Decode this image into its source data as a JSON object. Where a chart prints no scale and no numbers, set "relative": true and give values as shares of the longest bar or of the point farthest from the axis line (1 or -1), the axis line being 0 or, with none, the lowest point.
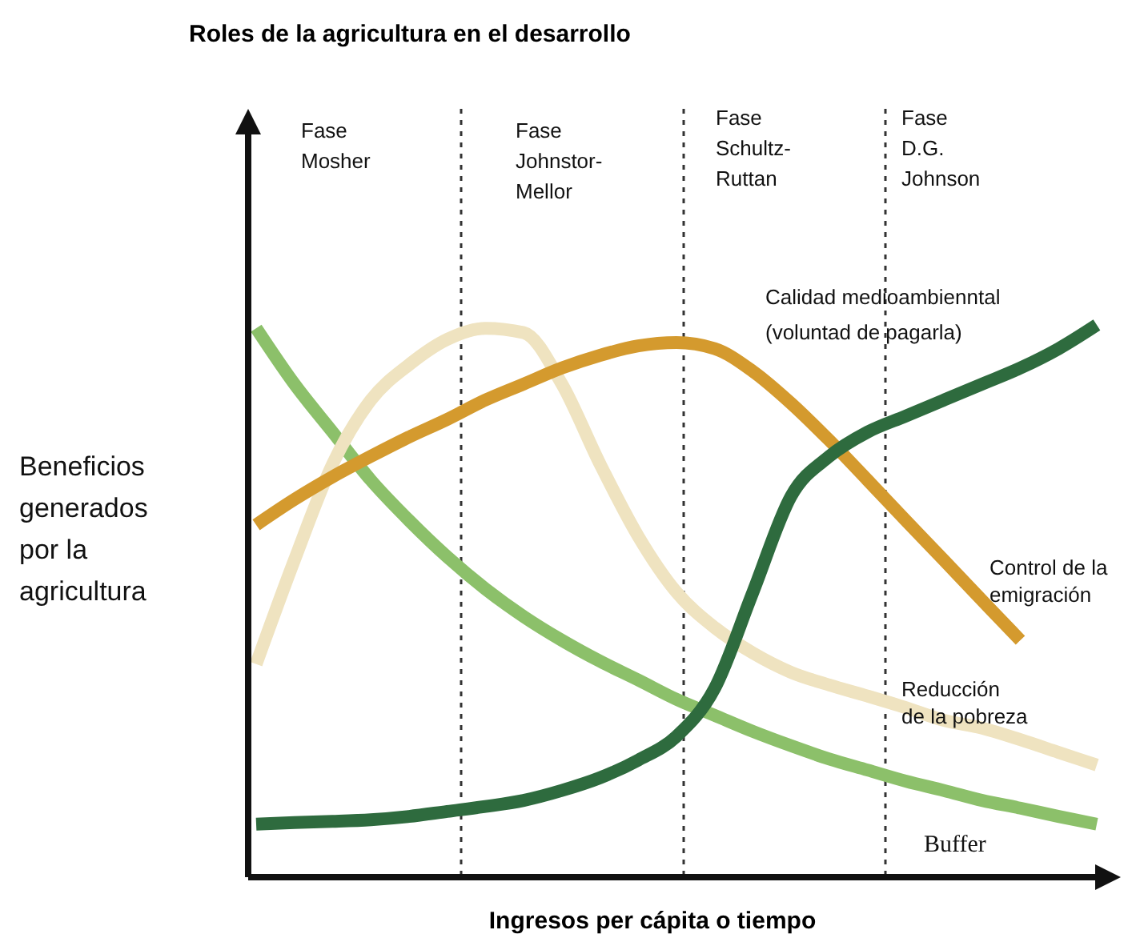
{
  "chart_data": {
    "type": "line",
    "title": "Roles de la agricultura en el desarrollo",
    "xlabel": "Ingresos per cápita o tiempo",
    "ylabel": "Beneficios generados por la agricultura",
    "relative": true,
    "marker": "none",
    "line_style": "solid",
    "categories": [
      null,
      null,
      null,
      null,
      null,
      null,
      null,
      null,
      null,
      null,
      null,
      null,
      null,
      null,
      null,
      null,
      null,
      null,
      null,
      null,
      null,
      null,
      null
    ],
    "series": [
      {
        "name": "Buffer",
        "color": "#8cc06a",
        "values": [
          0.994,
          0.893,
          0.806,
          0.719,
          0.646,
          0.58,
          0.522,
          0.472,
          0.429,
          0.391,
          0.357,
          0.322,
          0.293,
          0.264,
          0.238,
          0.214,
          0.194,
          0.174,
          0.157,
          0.139,
          0.125,
          0.11,
          0.096
        ]
      },
      {
        "name": "Reducción\nde la pobreza",
        "color": "#efe3c0",
        "values": [
          0.386,
          0.574,
          0.748,
          0.864,
          0.928,
          0.974,
          0.994,
          0.986,
          0.893,
          0.748,
          0.617,
          0.516,
          0.452,
          0.406,
          0.371,
          0.348,
          0.328,
          0.307,
          0.284,
          0.27,
          0.249,
          0.226,
          0.203
        ]
      },
      {
        "name": "Control de la\nemigración",
        "color": "#d49a2e",
        "values": [
          0.638,
          0.684,
          0.725,
          0.762,
          0.797,
          0.829,
          0.864,
          0.893,
          0.922,
          0.945,
          0.962,
          0.968,
          0.957,
          0.916,
          0.858,
          0.791,
          0.719,
          0.646,
          0.574,
          0.501,
          0.429,
          null,
          null
        ]
      },
      {
        "name": "Calidad medioambienntal\n(voluntad de pagarla)",
        "color": "#2e6b3e",
        "values": [
          0.096,
          0.099,
          0.101,
          0.104,
          0.11,
          0.119,
          0.128,
          0.139,
          0.157,
          0.18,
          0.212,
          0.255,
          0.342,
          0.516,
          0.69,
          0.762,
          0.806,
          0.835,
          0.864,
          0.893,
          0.922,
          0.957,
          1.0
        ]
      }
    ],
    "annotations": [
      "Fase\nMosher",
      "Fase\nJohnstor-\nMellor",
      "Fase\nSchultz-\nRuttan",
      "Fase\nD.G.\nJohnson"
    ]
  }
}
